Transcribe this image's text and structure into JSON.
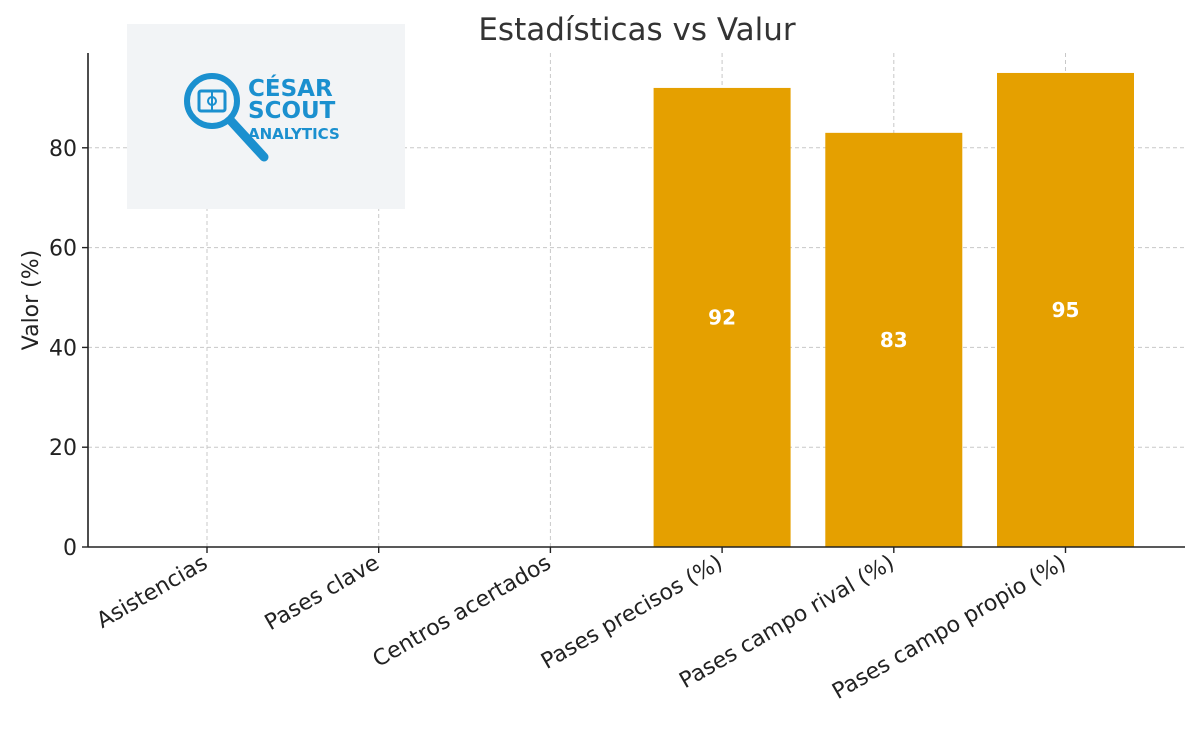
{
  "chart_data": {
    "type": "bar",
    "title": "Estadísticas vs Valur",
    "xlabel": "",
    "ylabel": "Valor (%)",
    "categories": [
      "Asistencias",
      "Pases clave",
      "Centros acertados",
      "Pases precisos (%)",
      "Pases campo rival (%)",
      "Pases campo propio (%)"
    ],
    "values": [
      0,
      0,
      0,
      92,
      83,
      95
    ],
    "data_labels": [
      "",
      "",
      "",
      "92",
      "83",
      "95"
    ],
    "ylim": [
      0,
      99
    ],
    "yticks": [
      0,
      20,
      40,
      60,
      80
    ],
    "grid": true,
    "colors": {
      "bar": "#e5a000",
      "grid": "#c8c8c8",
      "axis": "#222222"
    }
  },
  "logo": {
    "line1": "CÉSAR",
    "line2": "SCOUT",
    "line3": "ANALYTICS",
    "color": "#1b90cf",
    "background": "#f2f4f6"
  }
}
